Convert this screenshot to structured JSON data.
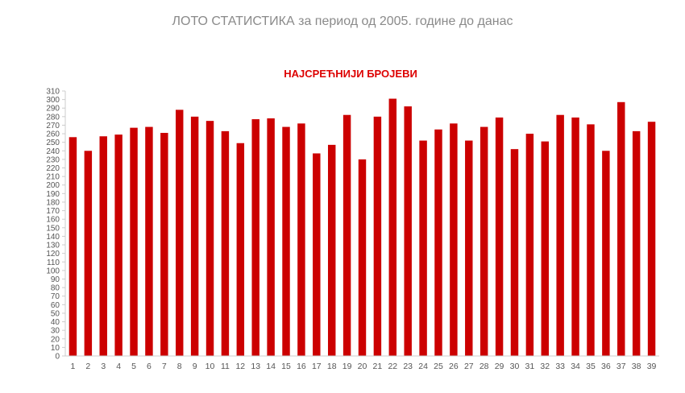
{
  "page": {
    "title": "ЛОТО СТАТИСТИКА за период од 2005. године до данас"
  },
  "colors": {
    "bar": "#cc0000",
    "title": "#dd0000",
    "axis": "#cccccc",
    "page_title": "#8a8a8a"
  },
  "chart_data": {
    "type": "bar",
    "title": "НАЈСРЕЋНИЈИ БРОЈЕВИ",
    "xlabel": "",
    "ylabel": "",
    "ylim": [
      0,
      310
    ],
    "ytick_step": 10,
    "grid": false,
    "legend": "none",
    "categories": [
      "1",
      "2",
      "3",
      "4",
      "5",
      "6",
      "7",
      "8",
      "9",
      "10",
      "11",
      "12",
      "13",
      "14",
      "15",
      "16",
      "17",
      "18",
      "19",
      "20",
      "21",
      "22",
      "23",
      "24",
      "25",
      "26",
      "27",
      "28",
      "29",
      "30",
      "31",
      "32",
      "33",
      "34",
      "35",
      "36",
      "37",
      "38",
      "39"
    ],
    "values": [
      256,
      240,
      257,
      259,
      267,
      268,
      261,
      288,
      280,
      275,
      263,
      249,
      277,
      278,
      268,
      272,
      237,
      247,
      282,
      230,
      280,
      301,
      292,
      252,
      265,
      272,
      252,
      268,
      279,
      242,
      260,
      251,
      282,
      279,
      271,
      240,
      297,
      263,
      274
    ]
  }
}
